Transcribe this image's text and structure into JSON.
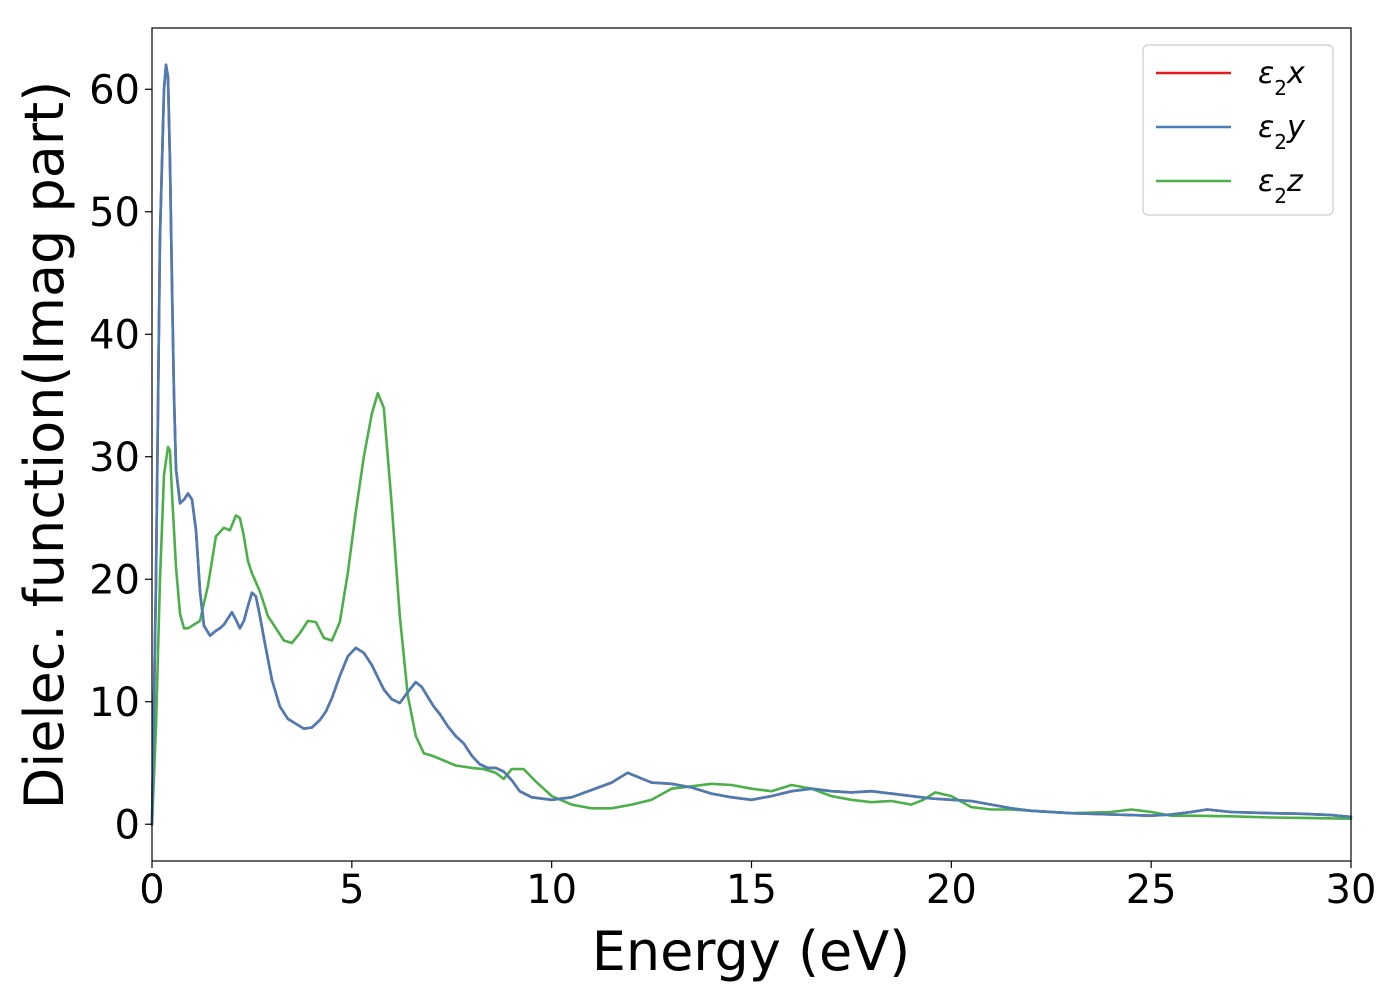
{
  "chart_data": {
    "type": "line",
    "title": "",
    "xlabel": "Energy (eV)",
    "ylabel": "Dielec. function(Imag part)",
    "xlim": [
      0,
      30
    ],
    "ylim": [
      -3,
      65
    ],
    "xticks": [
      0,
      5,
      10,
      15,
      20,
      25,
      30
    ],
    "yticks": [
      0,
      10,
      20,
      30,
      40,
      50,
      60
    ],
    "grid": false,
    "legend_position": "top-right",
    "series": [
      {
        "name": "ε₂x",
        "legend_base": "ε",
        "legend_sub": "2",
        "legend_tail": "x",
        "color": "#e41a1c",
        "x": [
          0,
          0.1,
          0.2,
          0.3,
          0.35,
          0.4,
          0.45,
          0.5,
          0.55,
          0.6,
          0.7,
          0.8,
          0.9,
          1.0,
          1.1,
          1.2,
          1.3,
          1.45,
          1.6,
          1.7,
          1.8,
          1.9,
          2.0,
          2.1,
          2.2,
          2.3,
          2.4,
          2.5,
          2.6,
          2.7,
          2.8,
          2.9,
          3.0,
          3.2,
          3.4,
          3.6,
          3.8,
          4.0,
          4.2,
          4.35,
          4.5,
          4.7,
          4.9,
          5.1,
          5.3,
          5.5,
          5.65,
          5.8,
          6.0,
          6.2,
          6.4,
          6.6,
          6.75,
          6.9,
          7.05,
          7.2,
          7.4,
          7.6,
          7.8,
          8.0,
          8.2,
          8.4,
          8.6,
          8.8,
          9.0,
          9.2,
          9.5,
          10.0,
          10.5,
          11.0,
          11.5,
          11.9,
          12.2,
          12.5,
          13.0,
          13.5,
          14.0,
          14.5,
          15.0,
          15.5,
          16.0,
          16.5,
          17.0,
          17.5,
          18.0,
          18.5,
          19.0,
          19.5,
          20.0,
          20.5,
          21.0,
          21.5,
          22.0,
          23.0,
          24.0,
          25.0,
          25.5,
          26.0,
          26.4,
          27.0,
          28.0,
          28.8,
          29.5,
          30.0
        ],
        "values": [
          0,
          20,
          48,
          60,
          62,
          61,
          54,
          44,
          35,
          29,
          26.2,
          26.5,
          27,
          26.5,
          24,
          19,
          16.2,
          15.4,
          15.8,
          16,
          16.3,
          16.8,
          17.3,
          16.7,
          16,
          16.6,
          17.8,
          18.9,
          18.6,
          17,
          15.2,
          13.5,
          11.8,
          9.6,
          8.6,
          8.2,
          7.8,
          7.9,
          8.5,
          9.2,
          10.3,
          12.1,
          13.7,
          14.4,
          14,
          13,
          12,
          11,
          10.2,
          9.9,
          10.8,
          11.6,
          11.2,
          10.4,
          9.6,
          9,
          8,
          7.2,
          6.6,
          5.6,
          4.9,
          4.6,
          4.6,
          4.3,
          3.6,
          2.7,
          2.2,
          2,
          2.2,
          2.8,
          3.4,
          4.2,
          3.8,
          3.4,
          3.3,
          3,
          2.5,
          2.2,
          2,
          2.3,
          2.7,
          2.9,
          2.7,
          2.6,
          2.7,
          2.5,
          2.3,
          2.1,
          2,
          1.9,
          1.6,
          1.3,
          1.1,
          0.9,
          0.8,
          0.7,
          0.8,
          1,
          1.2,
          1,
          0.9,
          0.85,
          0.75,
          0.6
        ]
      },
      {
        "name": "ε₂y",
        "legend_base": "ε",
        "legend_sub": "2",
        "legend_tail": "y",
        "color": "#4a7db3",
        "x": [
          0,
          0.1,
          0.2,
          0.3,
          0.35,
          0.4,
          0.45,
          0.5,
          0.55,
          0.6,
          0.7,
          0.8,
          0.9,
          1.0,
          1.1,
          1.2,
          1.3,
          1.45,
          1.6,
          1.7,
          1.8,
          1.9,
          2.0,
          2.1,
          2.2,
          2.3,
          2.4,
          2.5,
          2.6,
          2.7,
          2.8,
          2.9,
          3.0,
          3.2,
          3.4,
          3.6,
          3.8,
          4.0,
          4.2,
          4.35,
          4.5,
          4.7,
          4.9,
          5.1,
          5.3,
          5.5,
          5.65,
          5.8,
          6.0,
          6.2,
          6.4,
          6.6,
          6.75,
          6.9,
          7.05,
          7.2,
          7.4,
          7.6,
          7.8,
          8.0,
          8.2,
          8.4,
          8.6,
          8.8,
          9.0,
          9.2,
          9.5,
          10.0,
          10.5,
          11.0,
          11.5,
          11.9,
          12.2,
          12.5,
          13.0,
          13.5,
          14.0,
          14.5,
          15.0,
          15.5,
          16.0,
          16.5,
          17.0,
          17.5,
          18.0,
          18.5,
          19.0,
          19.5,
          20.0,
          20.5,
          21.0,
          21.5,
          22.0,
          23.0,
          24.0,
          25.0,
          25.5,
          26.0,
          26.4,
          27.0,
          28.0,
          28.8,
          29.5,
          30.0
        ],
        "values": [
          0,
          20,
          48,
          60,
          62,
          61,
          54,
          44,
          35,
          29,
          26.2,
          26.5,
          27,
          26.5,
          24,
          19,
          16.2,
          15.4,
          15.8,
          16,
          16.3,
          16.8,
          17.3,
          16.7,
          16,
          16.6,
          17.8,
          18.9,
          18.6,
          17,
          15.2,
          13.5,
          11.8,
          9.6,
          8.6,
          8.2,
          7.8,
          7.9,
          8.5,
          9.2,
          10.3,
          12.1,
          13.7,
          14.4,
          14,
          13,
          12,
          11,
          10.2,
          9.9,
          10.8,
          11.6,
          11.2,
          10.4,
          9.6,
          9,
          8,
          7.2,
          6.6,
          5.6,
          4.9,
          4.6,
          4.6,
          4.3,
          3.6,
          2.7,
          2.2,
          2,
          2.2,
          2.8,
          3.4,
          4.2,
          3.8,
          3.4,
          3.3,
          3,
          2.5,
          2.2,
          2,
          2.3,
          2.7,
          2.9,
          2.7,
          2.6,
          2.7,
          2.5,
          2.3,
          2.1,
          2,
          1.9,
          1.6,
          1.3,
          1.1,
          0.9,
          0.8,
          0.7,
          0.8,
          1,
          1.2,
          1,
          0.9,
          0.85,
          0.75,
          0.6
        ]
      },
      {
        "name": "ε₂z",
        "legend_base": "ε",
        "legend_sub": "2",
        "legend_tail": "z",
        "color": "#4daf4a",
        "x": [
          0,
          0.1,
          0.2,
          0.3,
          0.4,
          0.45,
          0.5,
          0.6,
          0.7,
          0.8,
          0.9,
          1.0,
          1.2,
          1.4,
          1.6,
          1.8,
          1.95,
          2.1,
          2.2,
          2.3,
          2.4,
          2.5,
          2.7,
          2.9,
          3.1,
          3.3,
          3.5,
          3.7,
          3.9,
          4.1,
          4.3,
          4.5,
          4.7,
          4.9,
          5.1,
          5.3,
          5.5,
          5.65,
          5.8,
          6.0,
          6.2,
          6.4,
          6.6,
          6.8,
          7.0,
          7.3,
          7.6,
          8.0,
          8.3,
          8.6,
          8.8,
          9.0,
          9.3,
          9.6,
          10.0,
          10.5,
          11.0,
          11.5,
          12.0,
          12.5,
          13.0,
          13.5,
          14.0,
          14.5,
          15.0,
          15.5,
          16.0,
          16.5,
          17.0,
          17.5,
          18.0,
          18.5,
          19.0,
          19.3,
          19.6,
          20.0,
          20.5,
          21.0,
          21.5,
          22.0,
          23.0,
          24.0,
          24.5,
          25.0,
          25.5,
          26.0,
          27.0,
          28.0,
          29.0,
          30.0
        ],
        "values": [
          0,
          8,
          20,
          28.5,
          30.8,
          30.5,
          27,
          21,
          17.2,
          16,
          16,
          16.2,
          16.6,
          19.5,
          23.5,
          24.2,
          24,
          25.2,
          25,
          23.5,
          21.5,
          20.5,
          19,
          17,
          16,
          15,
          14.8,
          15.6,
          16.6,
          16.5,
          15.2,
          15,
          16.5,
          20.5,
          25.5,
          30,
          33.5,
          35.2,
          34,
          26,
          17,
          10.5,
          7.2,
          5.8,
          5.6,
          5.2,
          4.8,
          4.6,
          4.5,
          4.2,
          3.7,
          4.5,
          4.5,
          3.5,
          2.3,
          1.6,
          1.3,
          1.3,
          1.6,
          2,
          2.9,
          3.1,
          3.3,
          3.2,
          2.9,
          2.7,
          3.2,
          2.9,
          2.3,
          2,
          1.8,
          1.9,
          1.6,
          2,
          2.6,
          2.3,
          1.4,
          1.2,
          1.2,
          1.1,
          0.9,
          1,
          1.2,
          1,
          0.7,
          0.7,
          0.65,
          0.55,
          0.5,
          0.45
        ]
      }
    ]
  }
}
